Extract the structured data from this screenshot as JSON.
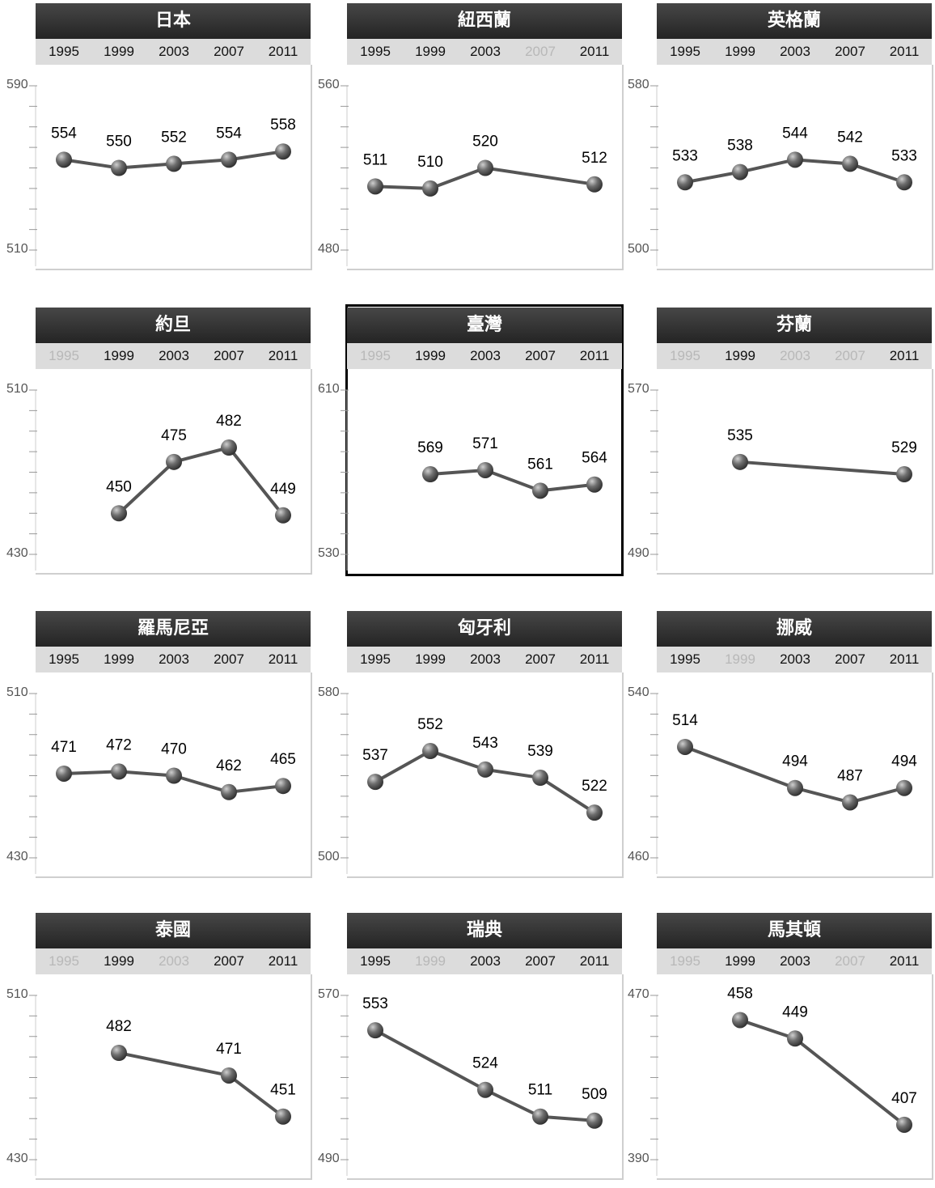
{
  "caption": "",
  "years": [
    "1995",
    "1999",
    "2003",
    "2007",
    "2011"
  ],
  "chart_data": [
    {
      "type": "line",
      "title": "日本",
      "x": [
        "1995",
        "1999",
        "2003",
        "2007",
        "2011"
      ],
      "y_ticks": [
        "590",
        "510"
      ],
      "ylim": [
        510,
        590
      ],
      "participated": [
        true,
        true,
        true,
        true,
        true
      ],
      "series": [
        {
          "values": [
            554,
            550,
            552,
            554,
            558
          ]
        }
      ]
    },
    {
      "type": "line",
      "title": "紐西蘭",
      "x": [
        "1995",
        "1999",
        "2003",
        "2007",
        "2011"
      ],
      "y_ticks": [
        "560",
        "480"
      ],
      "ylim": [
        480,
        560
      ],
      "participated": [
        true,
        true,
        true,
        false,
        true
      ],
      "series": [
        {
          "values": [
            511,
            510,
            520,
            null,
            512
          ]
        }
      ]
    },
    {
      "type": "line",
      "title": "英格蘭",
      "x": [
        "1995",
        "1999",
        "2003",
        "2007",
        "2011"
      ],
      "y_ticks": [
        "580",
        "500"
      ],
      "ylim": [
        500,
        580
      ],
      "participated": [
        true,
        true,
        true,
        true,
        true
      ],
      "series": [
        {
          "values": [
            533,
            538,
            544,
            542,
            533
          ]
        }
      ]
    },
    {
      "type": "line",
      "title": "約旦",
      "x": [
        "1995",
        "1999",
        "2003",
        "2007",
        "2011"
      ],
      "y_ticks": [
        "510",
        "430"
      ],
      "ylim": [
        430,
        510
      ],
      "participated": [
        false,
        true,
        true,
        true,
        true
      ],
      "series": [
        {
          "values": [
            null,
            450,
            475,
            482,
            449
          ]
        }
      ]
    },
    {
      "type": "line",
      "title": "臺灣",
      "highlight": true,
      "x": [
        "1995",
        "1999",
        "2003",
        "2007",
        "2011"
      ],
      "y_ticks": [
        "610",
        "530"
      ],
      "ylim": [
        530,
        610
      ],
      "participated": [
        false,
        true,
        true,
        true,
        true
      ],
      "series": [
        {
          "values": [
            null,
            569,
            571,
            561,
            564
          ]
        }
      ]
    },
    {
      "type": "line",
      "title": "芬蘭",
      "x": [
        "1995",
        "1999",
        "2003",
        "2007",
        "2011"
      ],
      "y_ticks": [
        "570",
        "490"
      ],
      "ylim": [
        490,
        570
      ],
      "participated": [
        false,
        true,
        false,
        false,
        true
      ],
      "series": [
        {
          "values": [
            null,
            535,
            null,
            null,
            529
          ]
        }
      ]
    },
    {
      "type": "line",
      "title": "羅馬尼亞",
      "x": [
        "1995",
        "1999",
        "2003",
        "2007",
        "2011"
      ],
      "y_ticks": [
        "510",
        "430"
      ],
      "ylim": [
        430,
        510
      ],
      "participated": [
        true,
        true,
        true,
        true,
        true
      ],
      "series": [
        {
          "values": [
            471,
            472,
            470,
            462,
            465
          ]
        }
      ]
    },
    {
      "type": "line",
      "title": "匈牙利",
      "x": [
        "1995",
        "1999",
        "2003",
        "2007",
        "2011"
      ],
      "y_ticks": [
        "580",
        "500"
      ],
      "ylim": [
        500,
        580
      ],
      "participated": [
        true,
        true,
        true,
        true,
        true
      ],
      "series": [
        {
          "values": [
            537,
            552,
            543,
            539,
            522
          ]
        }
      ]
    },
    {
      "type": "line",
      "title": "挪威",
      "x": [
        "1995",
        "1999",
        "2003",
        "2007",
        "2011"
      ],
      "y_ticks": [
        "540",
        "460"
      ],
      "ylim": [
        460,
        540
      ],
      "participated": [
        true,
        false,
        true,
        true,
        true
      ],
      "series": [
        {
          "values": [
            514,
            null,
            494,
            487,
            494
          ]
        }
      ]
    },
    {
      "type": "line",
      "title": "泰國",
      "x": [
        "1995",
        "1999",
        "2003",
        "2007",
        "2011"
      ],
      "y_ticks": [
        "510",
        "430"
      ],
      "ylim": [
        430,
        510
      ],
      "participated": [
        false,
        true,
        false,
        true,
        true
      ],
      "series": [
        {
          "values": [
            null,
            482,
            null,
            471,
            451
          ]
        }
      ]
    },
    {
      "type": "line",
      "title": "瑞典",
      "x": [
        "1995",
        "1999",
        "2003",
        "2007",
        "2011"
      ],
      "y_ticks": [
        "570",
        "490"
      ],
      "ylim": [
        490,
        570
      ],
      "participated": [
        true,
        false,
        true,
        true,
        true
      ],
      "series": [
        {
          "values": [
            553,
            null,
            524,
            511,
            509
          ]
        }
      ]
    },
    {
      "type": "line",
      "title": "馬其頓",
      "x": [
        "1995",
        "1999",
        "2003",
        "2007",
        "2011"
      ],
      "y_ticks": [
        "470",
        "390"
      ],
      "ylim": [
        390,
        470
      ],
      "participated": [
        false,
        true,
        true,
        false,
        true
      ],
      "series": [
        {
          "values": [
            null,
            458,
            449,
            null,
            407
          ]
        }
      ]
    }
  ]
}
